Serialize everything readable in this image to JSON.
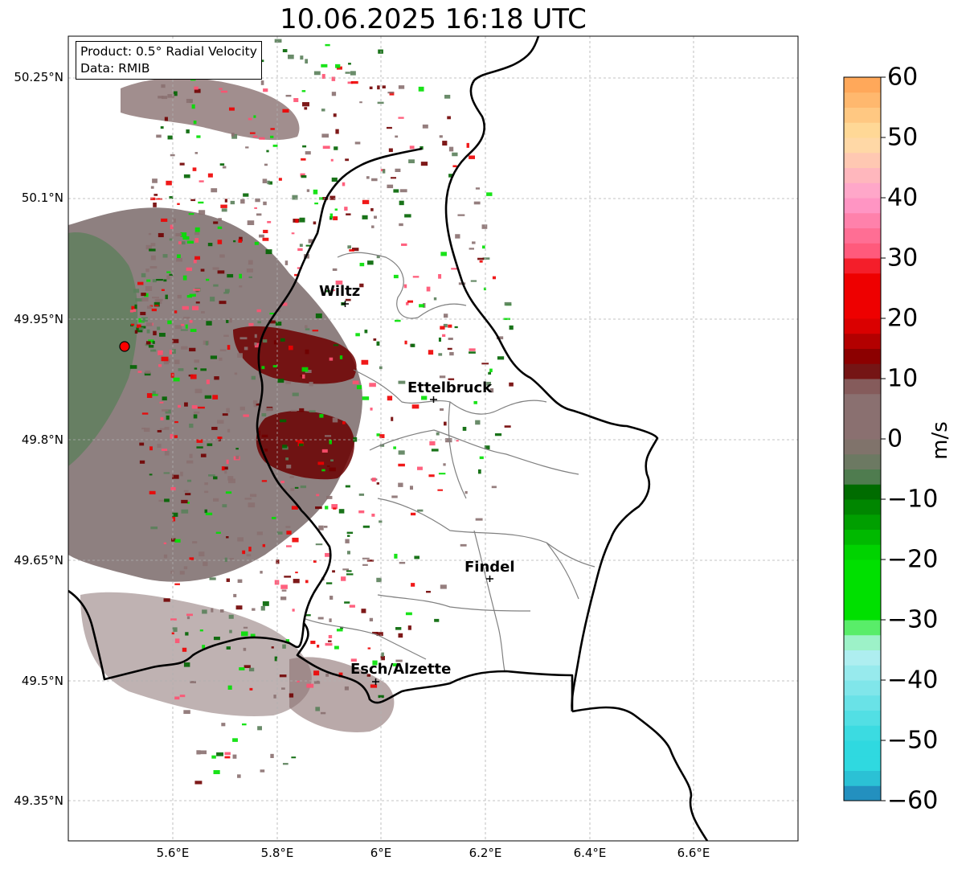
{
  "title": "10.06.2025 16:18 UTC",
  "info": {
    "product": "Product: 0.5° Radial Velocity",
    "data": "Data: RMIB"
  },
  "lat_ticks": [
    "50.25°N",
    "50.1°N",
    "49.95°N",
    "49.8°N",
    "49.65°N",
    "49.5°N",
    "49.35°N"
  ],
  "lon_ticks": [
    "5.6°E",
    "5.8°E",
    "6°E",
    "6.2°E",
    "6.4°E",
    "6.6°E"
  ],
  "cities": [
    {
      "name": "Wiltz"
    },
    {
      "name": "Ettelbruck"
    },
    {
      "name": "Findel"
    },
    {
      "name": "Esch/Alzette"
    }
  ],
  "colorbar": {
    "label": "m/s",
    "ticks": [
      "60",
      "50",
      "40",
      "30",
      "20",
      "10",
      "0",
      "−10",
      "−20",
      "−30",
      "−40",
      "−50",
      "−60"
    ],
    "range": [
      -60,
      60
    ],
    "colors": {
      "neg_blue": "#1f77b4",
      "neg_cyan": "#2fd9e0",
      "neg_light_cyan": "#b0eef0",
      "neg_light_green": "#8ef5a8",
      "neg_green": "#00e000",
      "neg_dark_green": "#006400",
      "near_zero_green": "#5a7f5a",
      "near_zero_grey": "#8a7070",
      "pos_maroon": "#700000",
      "pos_red": "#ee0000",
      "pos_pink": "#ff5070",
      "pos_light_pink": "#ff9fcf",
      "pos_yellow": "#ffe0a0",
      "pos_orange": "#ffa050"
    }
  },
  "radar_site_color": "#ff0000"
}
